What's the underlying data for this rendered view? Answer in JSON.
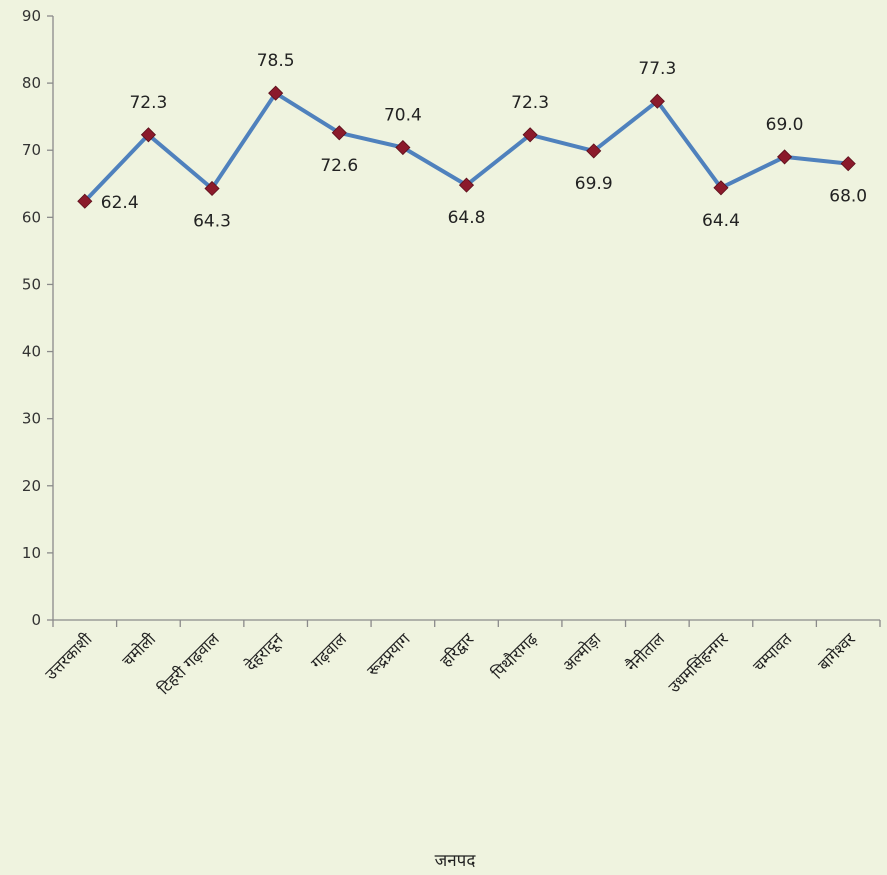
{
  "chart_data": {
    "type": "line",
    "title": "",
    "xlabel": "जनपद",
    "ylabel": "",
    "ylim": [
      0,
      90
    ],
    "yticks": [
      0,
      10,
      20,
      30,
      40,
      50,
      60,
      70,
      80,
      90
    ],
    "grid": false,
    "legend": "none",
    "categories": [
      "उत्तरकाशी",
      "चमोली",
      "टिहरी गढ़वाल",
      "देहरादून",
      "गढ़वाल",
      "रूद्रप्रयाग",
      "हरिद्वार",
      "पिथौरागढ़",
      "अल्मोड़ा",
      "नैनीताल",
      "उधमसिंहनगर",
      "चम्पावत",
      "बागेश्वर"
    ],
    "values": [
      62.4,
      72.3,
      64.3,
      78.5,
      72.6,
      70.4,
      64.8,
      72.3,
      69.9,
      77.3,
      64.4,
      69.0,
      68.0
    ],
    "value_labels": [
      "62.4",
      "72.3",
      "64.3",
      "78.5",
      "72.6",
      "70.4",
      "64.8",
      "72.3",
      "69.9",
      "77.3",
      "64.4",
      "69.0",
      "68.0"
    ],
    "label_placement": [
      "right",
      "above",
      "below",
      "above",
      "below",
      "above",
      "below",
      "above",
      "below",
      "above",
      "below",
      "above",
      "below"
    ],
    "colors": {
      "line": "#4f81bd",
      "marker": "#8b1a2b",
      "axis": "#8a8a8a",
      "background": "#eff3df"
    }
  }
}
